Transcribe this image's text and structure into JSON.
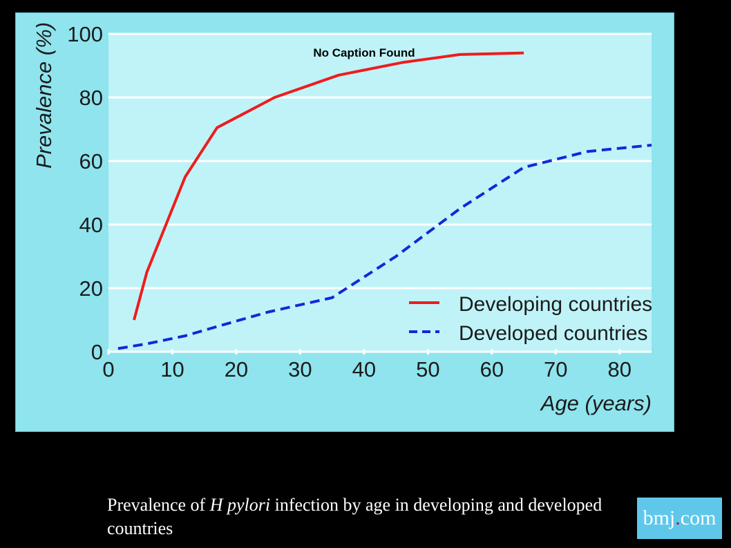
{
  "caption": {
    "text_before": "Prevalence of ",
    "italic": "H pylori",
    "text_after": " infection by age in developing and developed countries"
  },
  "logo": {
    "left": "bmj",
    "dot": ".",
    "right": "com"
  },
  "colors": {
    "frame": "#8fe4ee",
    "plot": "#bff3f8",
    "grid": "#ffffff",
    "developing": "#ee1c1c",
    "developed": "#1228d8",
    "logo_bg": "#5fc7ea"
  },
  "chart_data": {
    "type": "line",
    "title": "No Caption Found",
    "xlabel": "Age (years)",
    "ylabel": "Prevalence (%)",
    "xlim": [
      0,
      85
    ],
    "ylim": [
      0,
      100
    ],
    "xticks": [
      0,
      10,
      20,
      30,
      40,
      50,
      60,
      70,
      80
    ],
    "yticks": [
      0,
      20,
      40,
      60,
      80,
      100
    ],
    "grid": "horizontal",
    "legend_position": "bottom-right",
    "series": [
      {
        "name": "Developing countries",
        "style": "solid",
        "color": "#ee1c1c",
        "points": [
          [
            4,
            10
          ],
          [
            6,
            25
          ],
          [
            12,
            55
          ],
          [
            17,
            70.5
          ],
          [
            26,
            80
          ],
          [
            36,
            87
          ],
          [
            46,
            91
          ],
          [
            55,
            93.5
          ],
          [
            65,
            94
          ]
        ]
      },
      {
        "name": "Developed countries",
        "style": "dashed",
        "color": "#1228d8",
        "points": [
          [
            1.5,
            1
          ],
          [
            6,
            2.5
          ],
          [
            12,
            5
          ],
          [
            18,
            8.5
          ],
          [
            25,
            12.5
          ],
          [
            35,
            17
          ],
          [
            45,
            30
          ],
          [
            55,
            45
          ],
          [
            65,
            58
          ],
          [
            75,
            63
          ],
          [
            85,
            65
          ]
        ]
      }
    ]
  }
}
